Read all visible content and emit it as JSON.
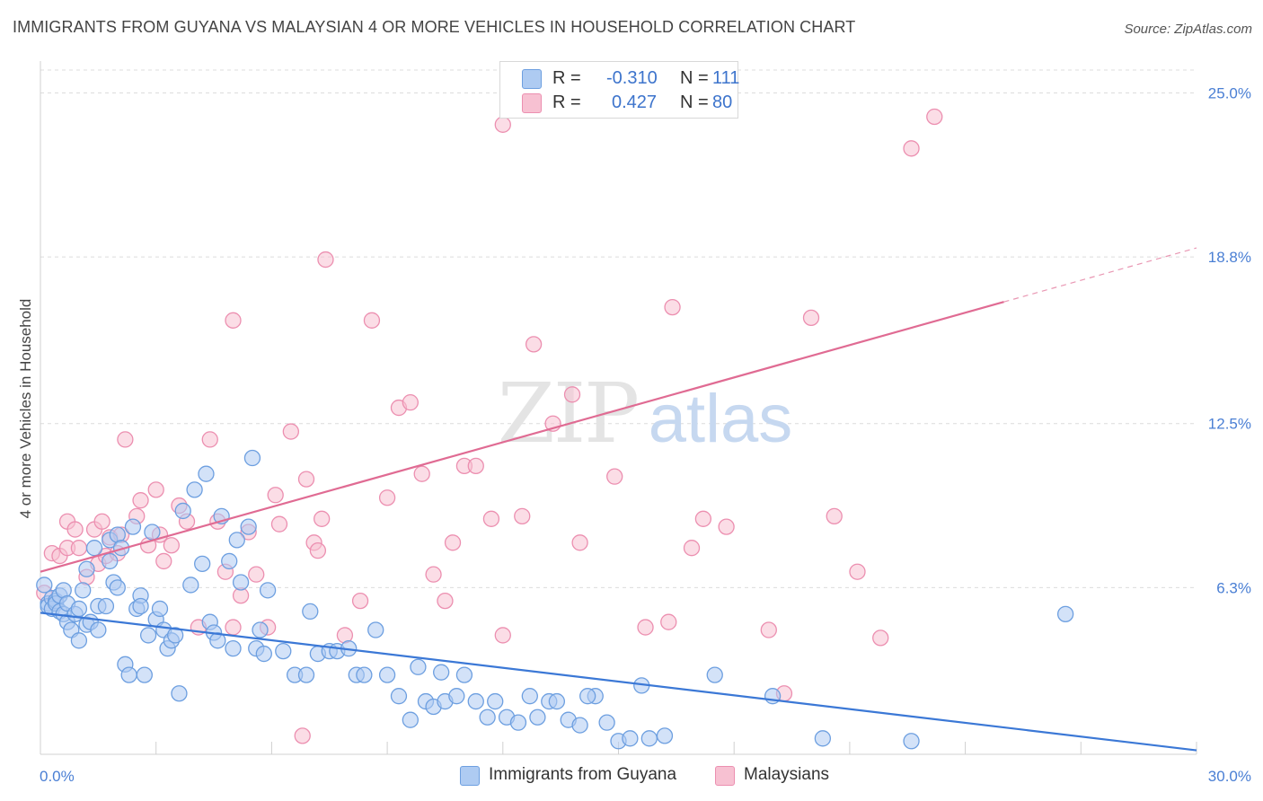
{
  "header": {
    "title": "IMMIGRANTS FROM GUYANA VS MALAYSIAN 4 OR MORE VEHICLES IN HOUSEHOLD CORRELATION CHART",
    "source": "Source: ZipAtlas.com"
  },
  "watermark": {
    "zip": "ZIP",
    "atlas": "atlas"
  },
  "legend": {
    "rows": [
      {
        "r_label": "R =",
        "r_value": "-0.310",
        "n_label": "N =",
        "n_value": "111"
      },
      {
        "r_label": "R =",
        "r_value": "0.427",
        "n_label": "N =",
        "n_value": "80"
      }
    ]
  },
  "bottom_legend": {
    "series1": "Immigrants from Guyana",
    "series2": "Malaysians"
  },
  "colors": {
    "blue_fill": "#aecbf2",
    "blue_stroke": "#6d9fe0",
    "blue_line": "#3b78d6",
    "pink_fill": "#f7c1d2",
    "pink_stroke": "#ec8fb0",
    "pink_line": "#e06b93",
    "tick_text": "#4a7fd4",
    "grid": "#dcdcdc"
  },
  "chart_data": {
    "type": "scatter",
    "title": "IMMIGRANTS FROM GUYANA VS MALAYSIAN 4 OR MORE VEHICLES IN HOUSEHOLD CORRELATION CHART",
    "ylabel": "4 or more Vehicles in Household",
    "xlim": [
      0,
      30
    ],
    "ylim": [
      0,
      26
    ],
    "x_tick_labels": [
      "0.0%",
      "30.0%"
    ],
    "y_ticks": [
      6.3,
      12.5,
      18.8,
      25.0
    ],
    "y_tick_labels": [
      "6.3%",
      "12.5%",
      "18.8%",
      "25.0%"
    ],
    "grid": true,
    "legend_position": "top-center",
    "series": [
      {
        "name": "Immigrants from Guyana",
        "color": "#6d9fe0",
        "trend": {
          "x": [
            0,
            30
          ],
          "y": [
            5.35,
            0.15
          ]
        },
        "points": [
          [
            0.1,
            6.4
          ],
          [
            0.2,
            5.7
          ],
          [
            0.2,
            5.6
          ],
          [
            0.3,
            5.9
          ],
          [
            0.3,
            5.5
          ],
          [
            0.4,
            5.8
          ],
          [
            0.4,
            5.7
          ],
          [
            0.5,
            6.0
          ],
          [
            0.5,
            5.4
          ],
          [
            0.6,
            6.2
          ],
          [
            0.6,
            5.3
          ],
          [
            0.7,
            5.7
          ],
          [
            0.7,
            5.0
          ],
          [
            0.8,
            4.7
          ],
          [
            0.9,
            5.3
          ],
          [
            1.0,
            4.3
          ],
          [
            1.0,
            5.5
          ],
          [
            1.1,
            6.2
          ],
          [
            1.2,
            7.0
          ],
          [
            1.2,
            4.9
          ],
          [
            1.3,
            5.0
          ],
          [
            1.4,
            7.8
          ],
          [
            1.5,
            4.7
          ],
          [
            1.5,
            5.6
          ],
          [
            1.7,
            5.6
          ],
          [
            1.8,
            7.3
          ],
          [
            1.8,
            8.1
          ],
          [
            1.9,
            6.5
          ],
          [
            2.0,
            6.3
          ],
          [
            2.0,
            8.3
          ],
          [
            2.1,
            7.8
          ],
          [
            2.2,
            3.4
          ],
          [
            2.3,
            3.0
          ],
          [
            2.4,
            8.6
          ],
          [
            2.5,
            5.5
          ],
          [
            2.6,
            6.0
          ],
          [
            2.6,
            5.6
          ],
          [
            2.7,
            3.0
          ],
          [
            2.8,
            4.5
          ],
          [
            2.9,
            8.4
          ],
          [
            3.0,
            5.1
          ],
          [
            3.1,
            5.5
          ],
          [
            3.2,
            4.7
          ],
          [
            3.3,
            4.0
          ],
          [
            3.4,
            4.3
          ],
          [
            3.5,
            4.5
          ],
          [
            3.6,
            2.3
          ],
          [
            3.7,
            9.2
          ],
          [
            3.9,
            6.4
          ],
          [
            4.0,
            10.0
          ],
          [
            4.2,
            7.2
          ],
          [
            4.3,
            10.6
          ],
          [
            4.4,
            5.0
          ],
          [
            4.5,
            4.6
          ],
          [
            4.6,
            4.3
          ],
          [
            4.7,
            9.0
          ],
          [
            4.9,
            7.3
          ],
          [
            5.0,
            4.0
          ],
          [
            5.1,
            8.1
          ],
          [
            5.2,
            6.5
          ],
          [
            5.4,
            8.6
          ],
          [
            5.5,
            11.2
          ],
          [
            5.6,
            4.0
          ],
          [
            5.7,
            4.7
          ],
          [
            5.8,
            3.8
          ],
          [
            5.9,
            6.2
          ],
          [
            6.3,
            3.9
          ],
          [
            6.6,
            3.0
          ],
          [
            6.9,
            3.0
          ],
          [
            7.0,
            5.4
          ],
          [
            7.2,
            3.8
          ],
          [
            7.5,
            3.9
          ],
          [
            7.7,
            3.9
          ],
          [
            8.0,
            4.0
          ],
          [
            8.2,
            3.0
          ],
          [
            8.4,
            3.0
          ],
          [
            8.7,
            4.7
          ],
          [
            9.0,
            3.0
          ],
          [
            9.3,
            2.2
          ],
          [
            9.6,
            1.3
          ],
          [
            9.8,
            3.3
          ],
          [
            10.0,
            2.0
          ],
          [
            10.2,
            1.8
          ],
          [
            10.4,
            3.1
          ],
          [
            10.5,
            2.0
          ],
          [
            10.8,
            2.2
          ],
          [
            11.0,
            3.0
          ],
          [
            11.3,
            2.0
          ],
          [
            11.6,
            1.4
          ],
          [
            11.8,
            2.0
          ],
          [
            12.1,
            1.4
          ],
          [
            12.4,
            1.2
          ],
          [
            12.7,
            2.2
          ],
          [
            12.9,
            1.4
          ],
          [
            13.2,
            2.0
          ],
          [
            13.4,
            2.0
          ],
          [
            13.7,
            1.3
          ],
          [
            14.0,
            1.1
          ],
          [
            14.4,
            2.2
          ],
          [
            14.7,
            1.2
          ],
          [
            15.0,
            0.5
          ],
          [
            15.3,
            0.6
          ],
          [
            15.8,
            0.6
          ],
          [
            16.2,
            0.7
          ],
          [
            14.2,
            2.2
          ],
          [
            15.6,
            2.6
          ],
          [
            17.5,
            3.0
          ],
          [
            19.0,
            2.2
          ],
          [
            20.3,
            0.6
          ],
          [
            22.6,
            0.5
          ],
          [
            26.6,
            5.3
          ]
        ]
      },
      {
        "name": "Malaysians",
        "color": "#ec8fb0",
        "trend": {
          "x": [
            0,
            25
          ],
          "y": [
            6.9,
            17.1
          ]
        },
        "points": [
          [
            0.1,
            6.1
          ],
          [
            0.3,
            7.6
          ],
          [
            0.5,
            7.5
          ],
          [
            0.7,
            7.8
          ],
          [
            0.7,
            8.8
          ],
          [
            0.9,
            8.5
          ],
          [
            1.0,
            7.8
          ],
          [
            1.2,
            6.7
          ],
          [
            1.4,
            8.5
          ],
          [
            1.5,
            7.2
          ],
          [
            1.6,
            8.8
          ],
          [
            1.7,
            7.5
          ],
          [
            1.8,
            8.2
          ],
          [
            2.0,
            7.6
          ],
          [
            2.1,
            8.3
          ],
          [
            2.2,
            11.9
          ],
          [
            2.5,
            9.0
          ],
          [
            2.6,
            9.6
          ],
          [
            2.8,
            7.9
          ],
          [
            3.0,
            10.0
          ],
          [
            3.1,
            8.3
          ],
          [
            3.2,
            7.3
          ],
          [
            3.4,
            7.9
          ],
          [
            3.6,
            9.4
          ],
          [
            3.8,
            8.8
          ],
          [
            4.1,
            4.8
          ],
          [
            4.4,
            11.9
          ],
          [
            4.6,
            8.8
          ],
          [
            4.8,
            6.9
          ],
          [
            5.0,
            4.8
          ],
          [
            5.2,
            6.0
          ],
          [
            5.4,
            8.4
          ],
          [
            5.6,
            6.8
          ],
          [
            5.9,
            4.8
          ],
          [
            6.1,
            9.8
          ],
          [
            6.2,
            8.7
          ],
          [
            6.5,
            12.2
          ],
          [
            6.9,
            10.4
          ],
          [
            7.1,
            8.0
          ],
          [
            7.2,
            7.7
          ],
          [
            7.3,
            8.9
          ],
          [
            7.4,
            18.7
          ],
          [
            7.9,
            4.5
          ],
          [
            8.3,
            5.8
          ],
          [
            8.6,
            16.4
          ],
          [
            9.0,
            9.7
          ],
          [
            9.3,
            13.1
          ],
          [
            9.6,
            13.3
          ],
          [
            9.9,
            10.6
          ],
          [
            10.2,
            6.8
          ],
          [
            10.5,
            5.8
          ],
          [
            10.7,
            8.0
          ],
          [
            11.0,
            10.9
          ],
          [
            11.3,
            10.9
          ],
          [
            11.7,
            8.9
          ],
          [
            12.0,
            23.8
          ],
          [
            12.5,
            9.0
          ],
          [
            12.8,
            15.5
          ],
          [
            13.3,
            12.5
          ],
          [
            13.8,
            13.6
          ],
          [
            14.0,
            8.0
          ],
          [
            14.6,
            24.6
          ],
          [
            14.9,
            10.5
          ],
          [
            15.7,
            4.8
          ],
          [
            16.3,
            5.0
          ],
          [
            16.9,
            7.8
          ],
          [
            17.2,
            8.9
          ],
          [
            17.8,
            8.6
          ],
          [
            18.9,
            4.7
          ],
          [
            19.3,
            2.3
          ],
          [
            20.0,
            16.5
          ],
          [
            20.6,
            9.0
          ],
          [
            21.2,
            6.9
          ],
          [
            21.8,
            4.4
          ],
          [
            22.6,
            22.9
          ],
          [
            23.2,
            24.1
          ],
          [
            16.4,
            16.9
          ],
          [
            12.0,
            4.5
          ],
          [
            5.0,
            16.4
          ],
          [
            6.8,
            0.7
          ]
        ]
      }
    ]
  }
}
